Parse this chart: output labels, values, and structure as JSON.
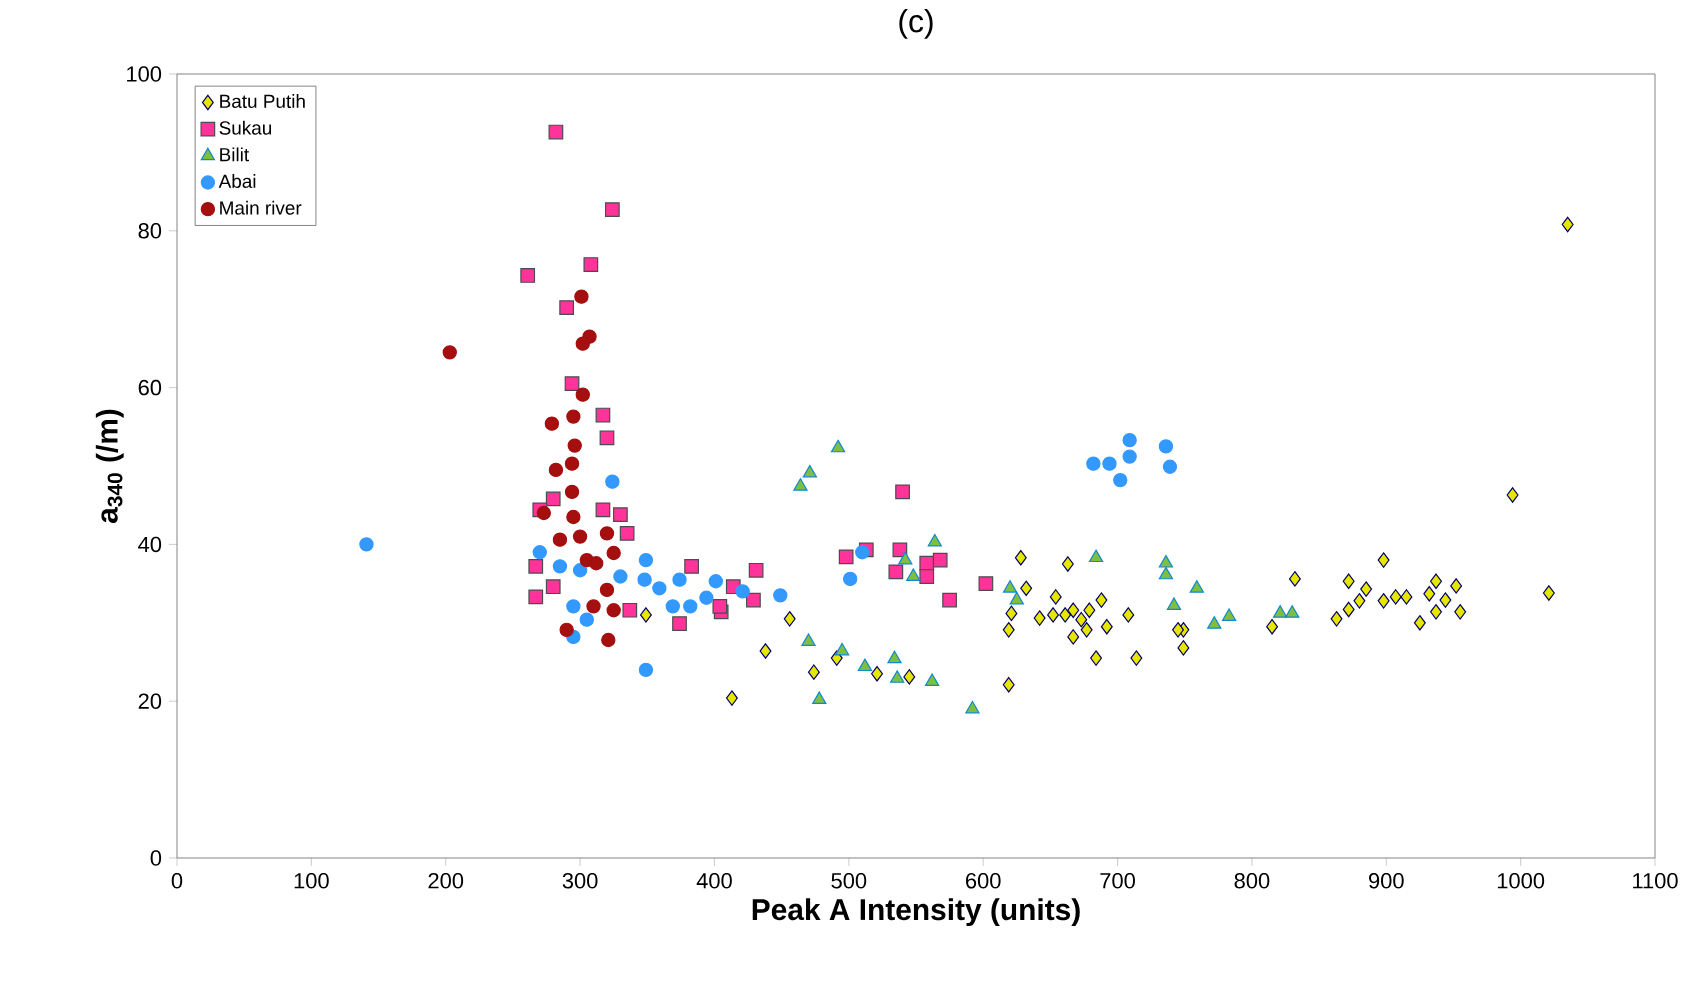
{
  "chart_data": {
    "type": "scatter",
    "title": "(c)",
    "xlabel": "Peak A Intensity (units)",
    "ylabel": "a$_{340}$ (/m)",
    "xlim": [
      0,
      1100
    ],
    "xticks": [
      0,
      100,
      200,
      300,
      400,
      500,
      600,
      700,
      800,
      900,
      1000,
      1100
    ],
    "ylim": [
      0,
      100
    ],
    "yticks": [
      0,
      20,
      40,
      60,
      80,
      100
    ],
    "grid": false,
    "legend": "top left",
    "series": [
      {
        "name": "Batu Putih",
        "color": "#e6e600",
        "marker": "diamond",
        "x": [
          1035,
          994,
          1021,
          898,
          832,
          815,
          872,
          885,
          880,
          872,
          863,
          898,
          907,
          915,
          925,
          932,
          937,
          952,
          944,
          937,
          955,
          749,
          749,
          413,
          438,
          456,
          474,
          491,
          521,
          545,
          619,
          628,
          632,
          621,
          619,
          663,
          654,
          642,
          652,
          661,
          667,
          673,
          679,
          688,
          667,
          677,
          692,
          708,
          684,
          714,
          745,
          349
        ],
        "values": [
          80.8,
          46.3,
          33.8,
          38.0,
          35.6,
          29.5,
          35.3,
          34.3,
          32.8,
          31.7,
          30.5,
          32.8,
          33.3,
          33.3,
          30.0,
          33.7,
          35.3,
          34.7,
          32.9,
          31.4,
          31.4,
          29.1,
          26.8,
          20.4,
          26.4,
          30.5,
          23.7,
          25.5,
          23.5,
          23.1,
          22.1,
          38.3,
          34.4,
          31.2,
          29.1,
          37.5,
          33.3,
          30.6,
          31.0,
          31.0,
          31.6,
          30.4,
          31.6,
          32.9,
          28.2,
          29.1,
          29.5,
          31.0,
          25.5,
          25.5,
          29.1,
          31.0
        ]
      },
      {
        "name": "Sukau",
        "color": "#ff3399",
        "marker": "square",
        "x": [
          282,
          324,
          261,
          308,
          290,
          294,
          317,
          320,
          280,
          267,
          267,
          280,
          270,
          317,
          330,
          335,
          383,
          374,
          337,
          405,
          540,
          431,
          414,
          404,
          429,
          498,
          513,
          538,
          535,
          558,
          568,
          558,
          602,
          575
        ],
        "values": [
          92.6,
          82.7,
          74.3,
          75.7,
          70.2,
          60.5,
          56.5,
          53.6,
          45.8,
          37.2,
          33.3,
          34.6,
          44.4,
          44.4,
          43.8,
          41.4,
          37.2,
          29.9,
          31.6,
          31.4,
          46.7,
          36.7,
          34.6,
          32.1,
          32.9,
          38.4,
          39.3,
          39.3,
          36.5,
          37.6,
          38.0,
          35.9,
          35.0,
          32.9
        ]
      },
      {
        "name": "Bilit",
        "color": "#7fbf3f",
        "marker": "triangle",
        "x": [
          492,
          471,
          464,
          564,
          542,
          548,
          684,
          736,
          736,
          742,
          759,
          620,
          625,
          470,
          495,
          512,
          534,
          536,
          562,
          478,
          592,
          772,
          783,
          821,
          830
        ],
        "values": [
          52.3,
          49.1,
          47.4,
          40.3,
          38.0,
          35.9,
          38.3,
          37.6,
          36.1,
          32.2,
          34.4,
          34.4,
          32.9,
          27.6,
          26.4,
          24.4,
          25.4,
          22.9,
          22.5,
          20.2,
          19.0,
          29.8,
          30.8,
          31.2,
          31.2
        ]
      },
      {
        "name": "Abai",
        "color": "#3399ff",
        "marker": "circle",
        "x": [
          141,
          694,
          709,
          709,
          702,
          736,
          739,
          682,
          510,
          501,
          449,
          421,
          401,
          394,
          324,
          270,
          349,
          348,
          359,
          374,
          369,
          382,
          300,
          295,
          305,
          295,
          330,
          349,
          285
        ],
        "values": [
          40.0,
          50.3,
          53.3,
          51.2,
          48.2,
          52.5,
          49.9,
          50.3,
          39.0,
          35.6,
          33.5,
          34.0,
          35.3,
          33.2,
          48.0,
          39.0,
          38.0,
          35.5,
          34.4,
          35.5,
          32.1,
          32.1,
          36.7,
          32.1,
          30.4,
          28.2,
          35.9,
          24.0,
          37.2
        ]
      },
      {
        "name": "Main river",
        "color": "#a50f0f",
        "marker": "circle",
        "x": [
          203,
          301,
          307,
          302,
          302,
          295,
          279,
          296,
          294,
          282,
          294,
          273,
          285,
          300,
          305,
          320,
          325,
          312,
          320,
          310,
          325,
          290,
          321,
          295
        ],
        "values": [
          64.5,
          71.6,
          66.5,
          65.6,
          59.1,
          56.3,
          55.4,
          52.6,
          50.3,
          49.5,
          46.7,
          44.0,
          40.6,
          41.0,
          38.0,
          41.4,
          38.9,
          37.6,
          34.2,
          32.1,
          31.6,
          29.1,
          27.8,
          43.5
        ]
      }
    ]
  }
}
